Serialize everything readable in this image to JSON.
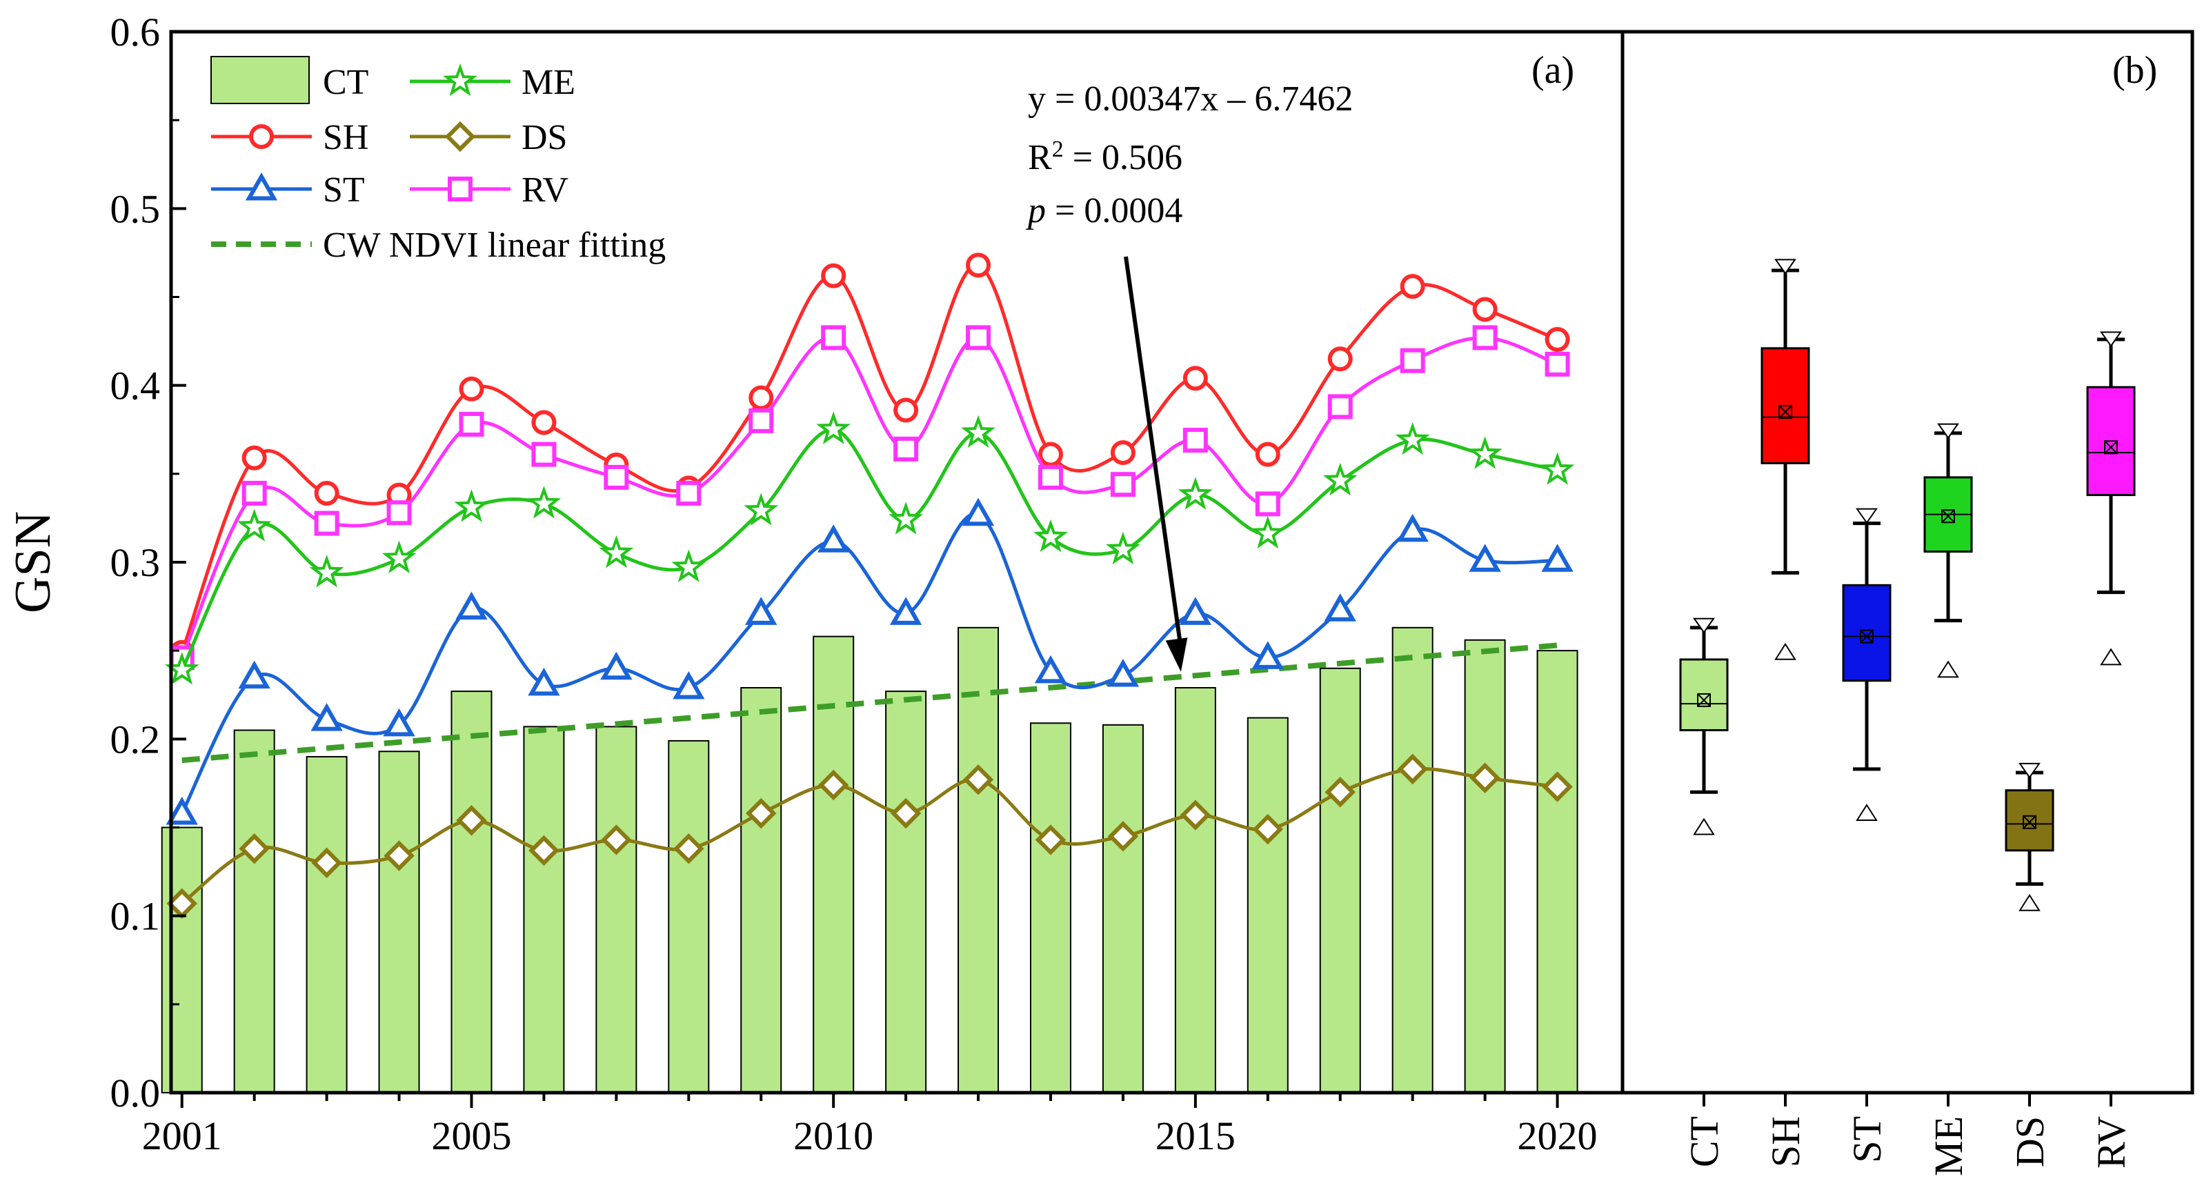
{
  "chart_data": [
    {
      "panel": "(a)",
      "type": "bar+line",
      "ylabel": "GSN",
      "xlabel": "",
      "ylim": [
        0.0,
        0.6
      ],
      "y_ticks": [
        "0.0",
        "0.1",
        "0.2",
        "0.3",
        "0.4",
        "0.5",
        "0.6"
      ],
      "x_ticks": [
        "2001",
        "2005",
        "2010",
        "2015",
        "2020"
      ],
      "x": [
        2001,
        2002,
        2003,
        2004,
        2005,
        2006,
        2007,
        2008,
        2009,
        2010,
        2011,
        2012,
        2013,
        2014,
        2015,
        2016,
        2017,
        2018,
        2019,
        2020
      ],
      "bars": {
        "name": "CT",
        "color": "#b6e88a",
        "values": [
          0.15,
          0.205,
          0.19,
          0.193,
          0.227,
          0.207,
          0.207,
          0.199,
          0.229,
          0.258,
          0.227,
          0.263,
          0.209,
          0.208,
          0.229,
          0.212,
          0.24,
          0.263,
          0.256,
          0.25
        ]
      },
      "series": [
        {
          "name": "SH",
          "color": "#ff2a2a",
          "marker": "circle",
          "values": [
            0.249,
            0.359,
            0.339,
            0.338,
            0.398,
            0.379,
            0.355,
            0.342,
            0.393,
            0.462,
            0.386,
            0.468,
            0.361,
            0.362,
            0.404,
            0.361,
            0.415,
            0.456,
            0.443,
            0.426
          ]
        },
        {
          "name": "RV",
          "color": "#ff33ff",
          "marker": "square",
          "values": [
            0.246,
            0.339,
            0.322,
            0.328,
            0.378,
            0.361,
            0.348,
            0.339,
            0.38,
            0.427,
            0.364,
            0.427,
            0.348,
            0.344,
            0.369,
            0.333,
            0.388,
            0.414,
            0.427,
            0.412
          ]
        },
        {
          "name": "ME",
          "color": "#22c41a",
          "marker": "star",
          "values": [
            0.239,
            0.32,
            0.294,
            0.302,
            0.331,
            0.333,
            0.305,
            0.297,
            0.329,
            0.375,
            0.324,
            0.373,
            0.314,
            0.307,
            0.338,
            0.316,
            0.346,
            0.369,
            0.361,
            0.352
          ]
        },
        {
          "name": "ST",
          "color": "#1a64d8",
          "marker": "triangle",
          "values": [
            0.158,
            0.235,
            0.211,
            0.208,
            0.274,
            0.231,
            0.24,
            0.229,
            0.271,
            0.312,
            0.271,
            0.327,
            0.238,
            0.236,
            0.271,
            0.246,
            0.273,
            0.318,
            0.301,
            0.301
          ]
        },
        {
          "name": "DS",
          "color": "#8a7a14",
          "marker": "diamond",
          "values": [
            0.107,
            0.138,
            0.13,
            0.134,
            0.154,
            0.137,
            0.143,
            0.138,
            0.158,
            0.174,
            0.158,
            0.177,
            0.143,
            0.145,
            0.157,
            0.149,
            0.17,
            0.183,
            0.178,
            0.173
          ]
        }
      ],
      "fit": {
        "name": "CW NDVI linear fitting",
        "color": "#3e9d28",
        "start": 0.188,
        "end": 0.253
      },
      "legend": [
        "CT",
        "ME",
        "SH",
        "DS",
        "ST",
        "RV",
        "CW NDVI linear fitting"
      ],
      "annotation": {
        "equation": "y = 0.00347x – 6.7462",
        "r2_prefix": "R",
        "r2_sup": "2",
        "r2_value": " = 0.506",
        "p_symbol": "p",
        "p_value": " = 0.0004",
        "arrow_to": {
          "x": 2014.8,
          "y": 0.238
        }
      }
    },
    {
      "panel": "(b)",
      "type": "box",
      "ylim": [
        0.0,
        0.6
      ],
      "categories": [
        "CT",
        "SH",
        "ST",
        "ME",
        "DS",
        "RV"
      ],
      "boxes": [
        {
          "name": "CT",
          "color": "#b6e88a",
          "whisker_low": 0.17,
          "q1": 0.205,
          "median": 0.22,
          "mean": 0.222,
          "q3": 0.245,
          "whisker_high": 0.263,
          "max_marker": 0.265,
          "min_marker": 0.15
        },
        {
          "name": "SH",
          "color": "#ff0000",
          "whisker_low": 0.294,
          "q1": 0.356,
          "median": 0.382,
          "mean": 0.385,
          "q3": 0.421,
          "whisker_high": 0.465,
          "max_marker": 0.468,
          "min_marker": 0.249
        },
        {
          "name": "ST",
          "color": "#0a14e6",
          "whisker_low": 0.183,
          "q1": 0.233,
          "median": 0.258,
          "mean": 0.258,
          "q3": 0.287,
          "whisker_high": 0.322,
          "max_marker": 0.327,
          "min_marker": 0.158
        },
        {
          "name": "ME",
          "color": "#1ed41e",
          "whisker_low": 0.267,
          "q1": 0.306,
          "median": 0.327,
          "mean": 0.326,
          "q3": 0.348,
          "whisker_high": 0.373,
          "max_marker": 0.375,
          "min_marker": 0.239
        },
        {
          "name": "DS",
          "color": "#837314",
          "whisker_low": 0.118,
          "q1": 0.137,
          "median": 0.152,
          "mean": 0.153,
          "q3": 0.171,
          "whisker_high": 0.181,
          "max_marker": 0.183,
          "min_marker": 0.107
        },
        {
          "name": "RV",
          "color": "#ff19ff",
          "whisker_low": 0.283,
          "q1": 0.338,
          "median": 0.362,
          "mean": 0.365,
          "q3": 0.399,
          "whisker_high": 0.426,
          "max_marker": 0.427,
          "min_marker": 0.246
        }
      ]
    }
  ]
}
